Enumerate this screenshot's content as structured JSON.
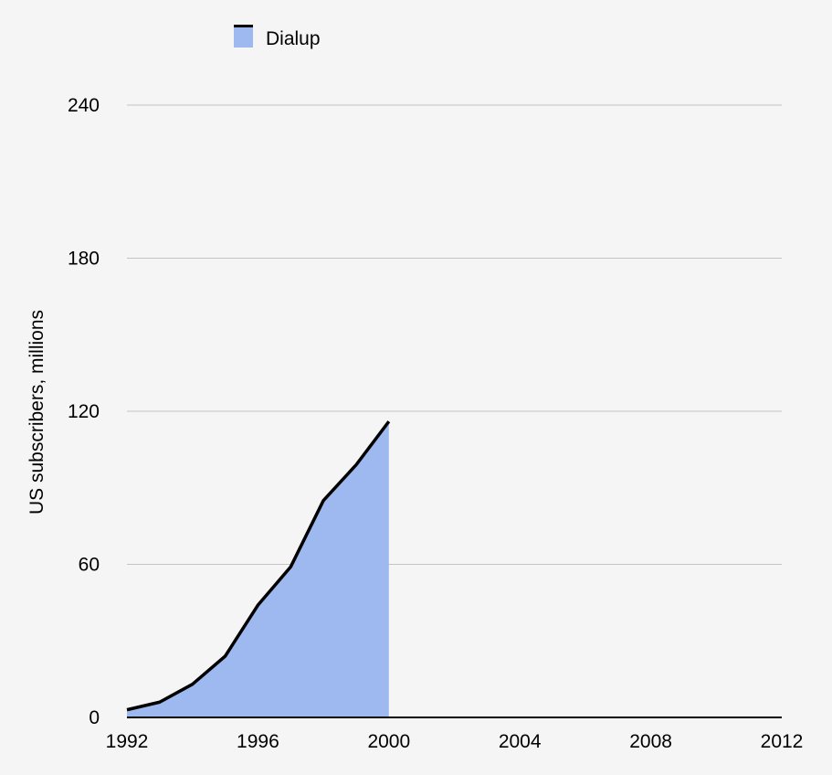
{
  "chart_data": {
    "type": "area",
    "title": "",
    "xlabel": "",
    "ylabel": "US subscribers, millions",
    "xlim": [
      1992,
      2012
    ],
    "ylim": [
      0,
      240
    ],
    "x_ticks": [
      1992,
      1996,
      2000,
      2004,
      2008,
      2012
    ],
    "y_ticks": [
      0,
      60,
      120,
      180,
      240
    ],
    "grid": "horizontal",
    "legend_position": "top-left",
    "series": [
      {
        "name": "Dialup",
        "fill_color": "#9db9ef",
        "line_color": "#000000",
        "x": [
          1992,
          1993,
          1994,
          1995,
          1996,
          1997,
          1998,
          1999,
          2000
        ],
        "values": [
          3,
          6,
          13,
          24,
          44,
          59,
          85,
          99,
          116
        ]
      }
    ]
  }
}
